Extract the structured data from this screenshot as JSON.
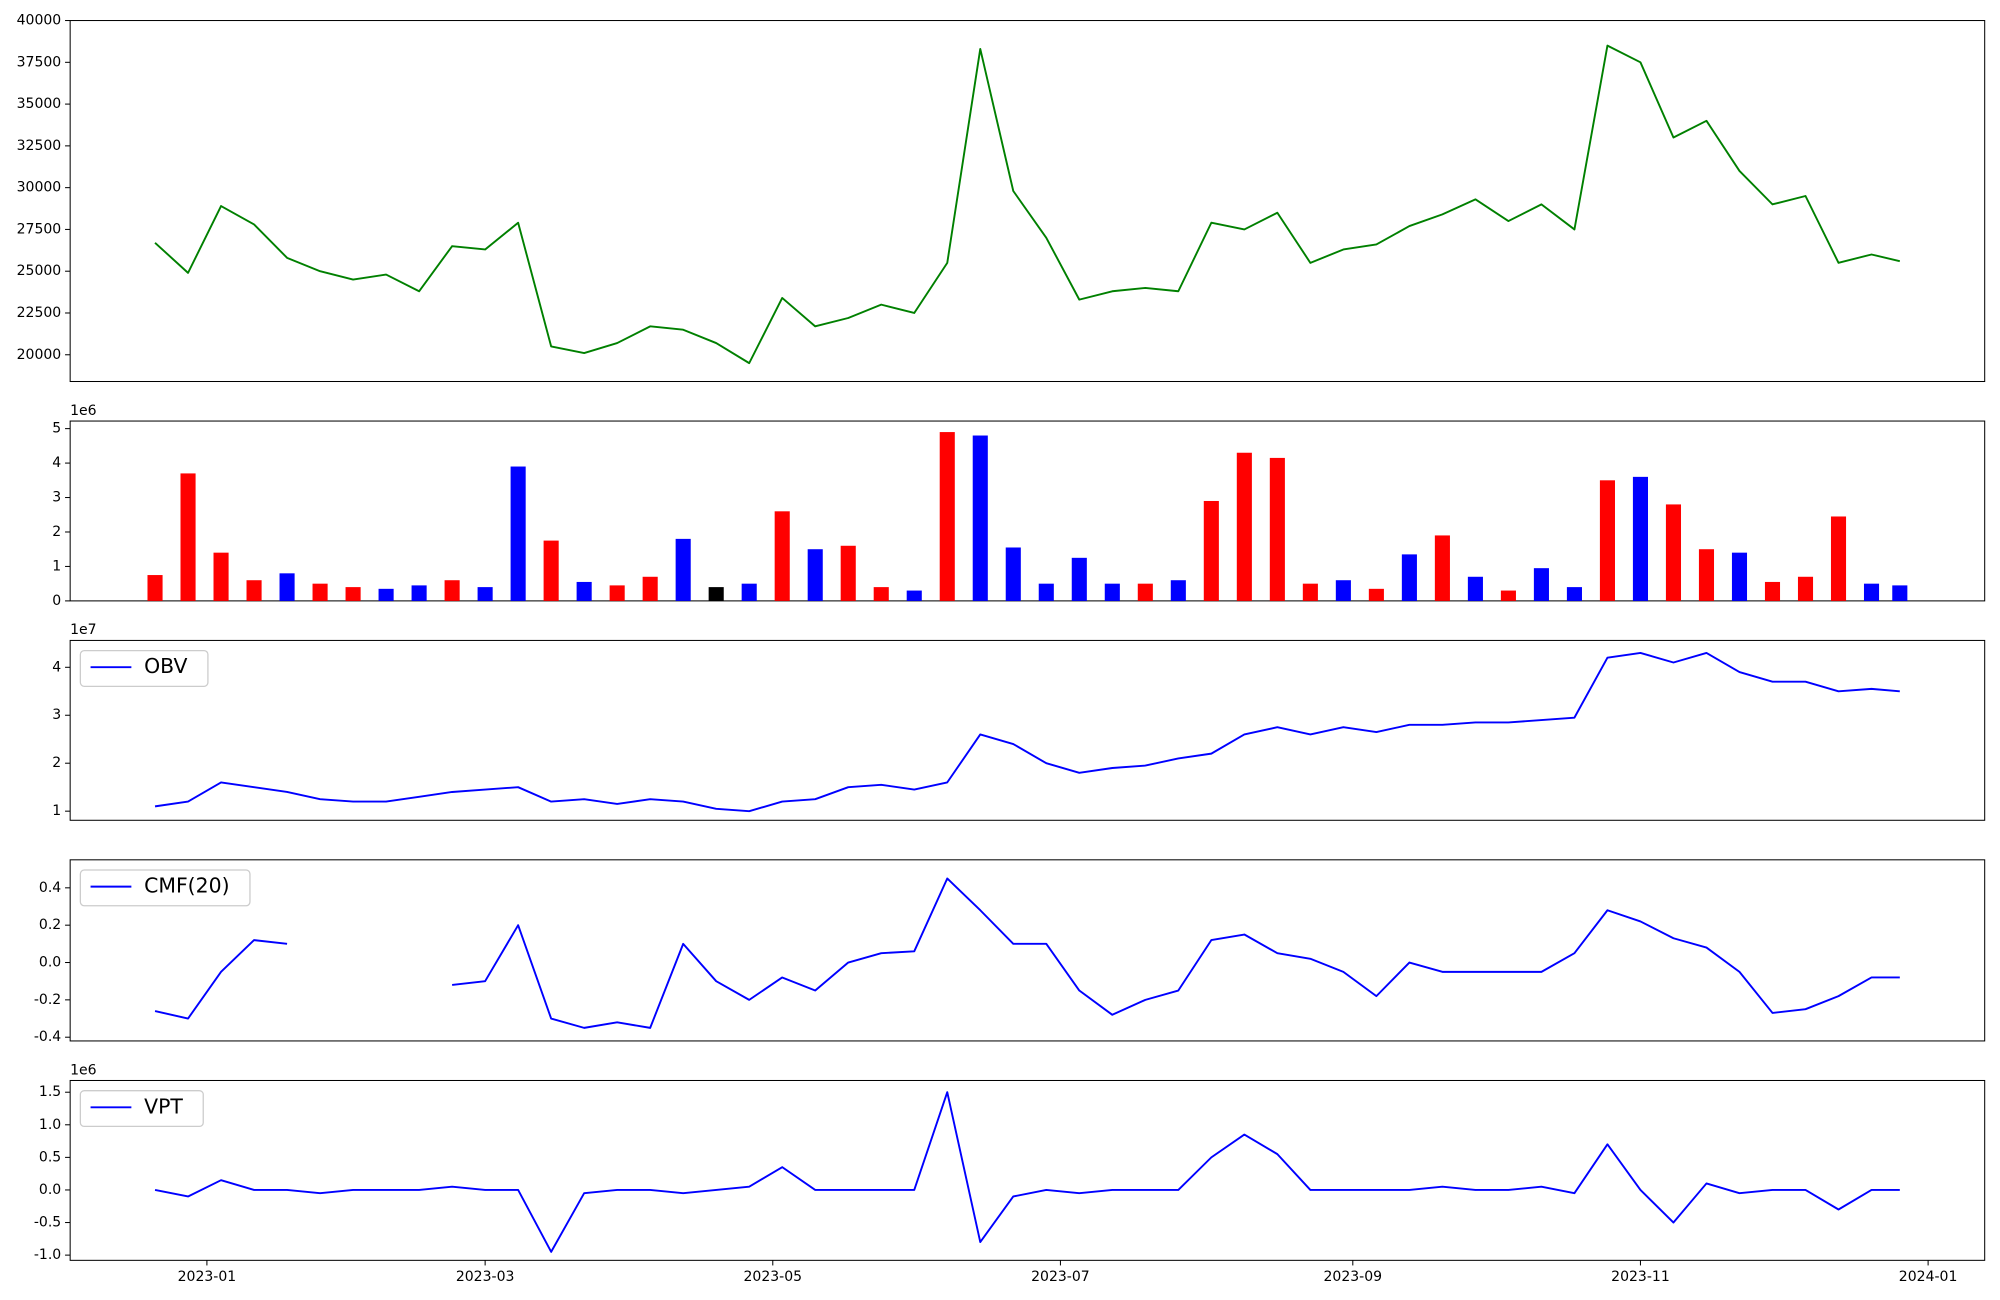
{
  "chart_data": [
    {
      "type": "line",
      "x": [
        19347,
        19354,
        19361,
        19368,
        19375,
        19382,
        19389,
        19396,
        19403,
        19410,
        19417,
        19424,
        19431,
        19438,
        19445,
        19452,
        19459,
        19466,
        19473,
        19480,
        19487,
        19494,
        19501,
        19508,
        19515,
        19522,
        19529,
        19536,
        19543,
        19550,
        19557,
        19564,
        19571,
        19578,
        19585,
        19592,
        19599,
        19606,
        19613,
        19620,
        19627,
        19634,
        19641,
        19648,
        19655,
        19662,
        19669,
        19676,
        19683,
        19690,
        19697,
        19704,
        19711,
        19717
      ],
      "series": [
        {
          "color": "green",
          "values": [
            26700,
            24900,
            28900,
            27800,
            25800,
            25000,
            24500,
            24800,
            23800,
            26500,
            26300,
            27900,
            20500,
            20100,
            20700,
            21700,
            21500,
            20700,
            19500,
            23400,
            21700,
            22200,
            23000,
            22500,
            25500,
            38300,
            29800,
            27000,
            23300,
            23800,
            24000,
            23800,
            27900,
            27500,
            28500,
            25500,
            26300,
            26600,
            27700,
            28400,
            29300,
            28000,
            29000,
            27500,
            38500,
            37500,
            33000,
            34000,
            31000,
            29000,
            29500,
            25500,
            26000,
            25600
          ]
        }
      ],
      "xlim": [
        19329,
        19735
      ],
      "ylim": [
        18400,
        40000
      ],
      "yticks": [
        20000,
        22500,
        25000,
        27500,
        30000,
        32500,
        35000,
        37500,
        40000
      ]
    },
    {
      "type": "bar",
      "x": [
        19347,
        19354,
        19361,
        19368,
        19375,
        19382,
        19389,
        19396,
        19403,
        19410,
        19417,
        19424,
        19431,
        19438,
        19445,
        19452,
        19459,
        19466,
        19473,
        19480,
        19487,
        19494,
        19501,
        19508,
        19515,
        19522,
        19529,
        19536,
        19543,
        19550,
        19557,
        19564,
        19571,
        19578,
        19585,
        19592,
        19599,
        19606,
        19613,
        19620,
        19627,
        19634,
        19641,
        19648,
        19655,
        19662,
        19669,
        19676,
        19683,
        19690,
        19697,
        19704,
        19711,
        19717
      ],
      "values": [
        0.75,
        3.7,
        1.4,
        0.6,
        0.8,
        0.5,
        0.4,
        0.35,
        0.45,
        0.6,
        0.4,
        3.9,
        1.75,
        0.55,
        0.45,
        0.7,
        1.8,
        0.4,
        0.5,
        2.6,
        1.5,
        1.6,
        0.4,
        0.3,
        4.9,
        4.8,
        1.55,
        0.5,
        1.25,
        0.5,
        0.5,
        0.6,
        2.9,
        4.3,
        4.15,
        0.5,
        0.6,
        0.35,
        1.35,
        1.9,
        0.7,
        0.3,
        0.95,
        0.4,
        3.5,
        3.6,
        2.8,
        1.5,
        1.4,
        0.55,
        0.7,
        2.45,
        0.5,
        0.45
      ],
      "colors": [
        "red",
        "red",
        "red",
        "red",
        "blue",
        "red",
        "red",
        "blue",
        "blue",
        "red",
        "blue",
        "blue",
        "red",
        "blue",
        "red",
        "red",
        "blue",
        "black",
        "blue",
        "red",
        "blue",
        "red",
        "red",
        "blue",
        "red",
        "blue",
        "blue",
        "blue",
        "blue",
        "blue",
        "red",
        "blue",
        "red",
        "red",
        "red",
        "red",
        "blue",
        "red",
        "blue",
        "red",
        "blue",
        "red",
        "blue",
        "blue",
        "red",
        "blue",
        "red",
        "red",
        "blue",
        "red",
        "red",
        "red",
        "blue",
        "blue"
      ],
      "xlim": [
        19329,
        19735
      ],
      "ylim": [
        0,
        5.22
      ],
      "yticks": [
        0,
        1,
        2,
        3,
        4,
        5
      ],
      "offset_label": "1e6"
    },
    {
      "type": "line",
      "x": [
        19347,
        19354,
        19361,
        19368,
        19375,
        19382,
        19389,
        19396,
        19403,
        19410,
        19417,
        19424,
        19431,
        19438,
        19445,
        19452,
        19459,
        19466,
        19473,
        19480,
        19487,
        19494,
        19501,
        19508,
        19515,
        19522,
        19529,
        19536,
        19543,
        19550,
        19557,
        19564,
        19571,
        19578,
        19585,
        19592,
        19599,
        19606,
        19613,
        19620,
        19627,
        19634,
        19641,
        19648,
        19655,
        19662,
        19669,
        19676,
        19683,
        19690,
        19697,
        19704,
        19711,
        19717
      ],
      "series": [
        {
          "name": "OBV",
          "color": "blue",
          "values": [
            1.1,
            1.2,
            1.6,
            1.5,
            1.4,
            1.25,
            1.2,
            1.2,
            1.3,
            1.4,
            1.45,
            1.5,
            1.2,
            1.25,
            1.15,
            1.25,
            1.2,
            1.05,
            1.0,
            1.2,
            1.25,
            1.5,
            1.55,
            1.45,
            1.6,
            2.6,
            2.4,
            2.0,
            1.8,
            1.9,
            1.95,
            2.1,
            2.2,
            2.6,
            2.75,
            2.6,
            2.75,
            2.65,
            2.8,
            2.8,
            2.85,
            2.85,
            2.9,
            2.95,
            4.2,
            4.3,
            4.1,
            4.3,
            3.9,
            3.7,
            3.7,
            3.5,
            3.55,
            3.5
          ]
        }
      ],
      "xlim": [
        19329,
        19735
      ],
      "ylim": [
        0.81,
        4.56
      ],
      "yticks": [
        1,
        2,
        3,
        4
      ],
      "offset_label": "1e7",
      "legend": "upper left"
    },
    {
      "type": "line",
      "x": [
        19347,
        19354,
        19361,
        19368,
        19375,
        19382,
        19389,
        19396,
        19403,
        19410,
        19417,
        19424,
        19431,
        19438,
        19445,
        19452,
        19459,
        19466,
        19473,
        19480,
        19487,
        19494,
        19501,
        19508,
        19515,
        19522,
        19529,
        19536,
        19543,
        19550,
        19557,
        19564,
        19571,
        19578,
        19585,
        19592,
        19599,
        19606,
        19613,
        19620,
        19627,
        19634,
        19641,
        19648,
        19655,
        19662,
        19669,
        19676,
        19683,
        19690,
        19697,
        19704,
        19711,
        19717
      ],
      "series": [
        {
          "name": "CMF(20)",
          "color": "blue",
          "values": [
            -0.26,
            -0.3,
            -0.05,
            0.12,
            0.1,
            null,
            null,
            null,
            null,
            -0.12,
            -0.1,
            0.2,
            -0.3,
            -0.35,
            -0.32,
            -0.35,
            0.1,
            -0.1,
            -0.2,
            -0.08,
            -0.15,
            0.0,
            0.05,
            0.06,
            0.45,
            0.28,
            0.1,
            0.1,
            -0.15,
            -0.28,
            -0.2,
            -0.15,
            0.12,
            0.15,
            0.05,
            0.02,
            -0.05,
            -0.18,
            0.0,
            -0.05,
            -0.05,
            -0.05,
            -0.05,
            0.05,
            0.28,
            0.22,
            0.13,
            0.08,
            -0.05,
            -0.27,
            -0.25,
            -0.18,
            -0.08,
            -0.08
          ]
        }
      ],
      "xlim": [
        19329,
        19735
      ],
      "ylim": [
        -0.42,
        0.55
      ],
      "yticks": [
        -0.4,
        -0.2,
        {
          "value": 0,
          "label": "0.0"
        },
        0.2,
        0.4
      ],
      "legend": "upper left"
    },
    {
      "type": "line",
      "x": [
        19347,
        19354,
        19361,
        19368,
        19375,
        19382,
        19389,
        19396,
        19403,
        19410,
        19417,
        19424,
        19431,
        19438,
        19445,
        19452,
        19459,
        19466,
        19473,
        19480,
        19487,
        19494,
        19501,
        19508,
        19515,
        19522,
        19529,
        19536,
        19543,
        19550,
        19557,
        19564,
        19571,
        19578,
        19585,
        19592,
        19599,
        19606,
        19613,
        19620,
        19627,
        19634,
        19641,
        19648,
        19655,
        19662,
        19669,
        19676,
        19683,
        19690,
        19697,
        19704,
        19711,
        19717
      ],
      "series": [
        {
          "name": "VPT",
          "color": "blue",
          "values": [
            0.0,
            -0.1,
            0.15,
            0.0,
            0.0,
            -0.05,
            0.0,
            0.0,
            0.0,
            0.05,
            0.0,
            0.0,
            -0.95,
            -0.05,
            0.0,
            0.0,
            -0.05,
            0.0,
            0.05,
            0.35,
            0.0,
            0.0,
            0.0,
            0.0,
            1.5,
            -0.8,
            -0.1,
            0.0,
            -0.05,
            0.0,
            0.0,
            0.0,
            0.5,
            0.85,
            0.55,
            0.0,
            0.0,
            0.0,
            0.0,
            0.05,
            0.0,
            0.0,
            0.05,
            -0.05,
            0.7,
            0.0,
            -0.5,
            0.1,
            -0.05,
            0.0,
            0.0,
            -0.3,
            0.0,
            0.0
          ]
        }
      ],
      "xlim": [
        19329,
        19735
      ],
      "ylim": [
        -1.08,
        1.68
      ],
      "yticks": [
        {
          "value": -1,
          "label": "-1.0"
        },
        -0.5,
        {
          "value": 0,
          "label": "0.0"
        },
        0.5,
        {
          "value": 1,
          "label": "1.0"
        },
        1.5
      ],
      "offset_label": "1e6",
      "legend": "upper left",
      "xticks": [
        {
          "value": 19358,
          "label": "2023-01"
        },
        {
          "value": 19417,
          "label": "2023-03"
        },
        {
          "value": 19478,
          "label": "2023-05"
        },
        {
          "value": 19539,
          "label": "2023-07"
        },
        {
          "value": 19601,
          "label": "2023-09"
        },
        {
          "value": 19662,
          "label": "2023-11"
        },
        {
          "value": 19723,
          "label": "2024-01"
        }
      ]
    }
  ]
}
